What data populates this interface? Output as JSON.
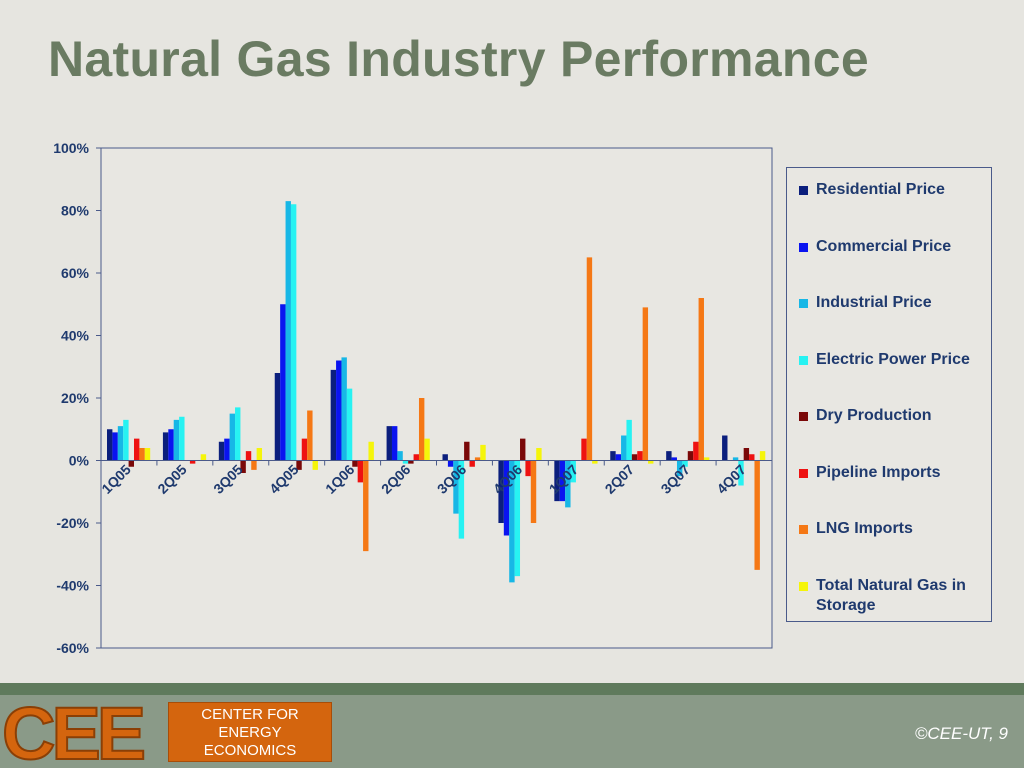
{
  "title": "Natural Gas Industry Performance",
  "footer": {
    "logo_text": "CEE",
    "logo_box_lines": [
      "CENTER FOR",
      "ENERGY",
      "ECONOMICS"
    ],
    "copyright": "©CEE-UT, 9"
  },
  "chart_data": {
    "type": "bar",
    "categories": [
      "1Q05",
      "2Q05",
      "3Q05",
      "4Q05",
      "1Q06",
      "2Q06",
      "3Q06",
      "4Q06",
      "1Q07",
      "2Q07",
      "3Q07",
      "4Q07"
    ],
    "ylim": [
      -60,
      100
    ],
    "yticks": [
      100,
      80,
      60,
      40,
      20,
      0,
      -20,
      -40,
      -60
    ],
    "ytick_labels": [
      "100%",
      "80%",
      "60%",
      "40%",
      "20%",
      "0%",
      "-20%",
      "-40%",
      "-60%"
    ],
    "grid": false,
    "legend_position": "right",
    "series": [
      {
        "name": "Residential Price",
        "color": "#0b1f7d",
        "values": [
          10,
          9,
          6,
          28,
          29,
          11,
          2,
          -20,
          -13,
          3,
          3,
          8
        ]
      },
      {
        "name": "Commercial Price",
        "color": "#0a14f0",
        "values": [
          9,
          10,
          7,
          50,
          32,
          11,
          -2,
          -24,
          -13,
          2,
          1,
          0
        ]
      },
      {
        "name": "Industrial Price",
        "color": "#17b7e6",
        "values": [
          11,
          13,
          15,
          83,
          33,
          3,
          -17,
          -39,
          -15,
          8,
          -5,
          1
        ]
      },
      {
        "name": "Electric Power Price",
        "color": "#27f2f2",
        "values": [
          13,
          14,
          17,
          82,
          23,
          -1,
          -25,
          -37,
          -7,
          13,
          -2,
          -8
        ]
      },
      {
        "name": "Dry Production",
        "color": "#7a0808",
        "values": [
          -2,
          0,
          -4,
          -3,
          -2,
          -1,
          6,
          7,
          0,
          2,
          3,
          4
        ]
      },
      {
        "name": "Pipeline Imports",
        "color": "#ee1111",
        "values": [
          7,
          -1,
          3,
          7,
          -7,
          2,
          -2,
          -5,
          7,
          3,
          6,
          2
        ]
      },
      {
        "name": "LNG Imports",
        "color": "#f57815",
        "values": [
          4,
          0,
          -3,
          16,
          -29,
          20,
          1,
          -20,
          65,
          49,
          52,
          -35
        ]
      },
      {
        "name": "Total Natural Gas in Storage",
        "color": "#f5f50a",
        "values": [
          4,
          2,
          4,
          -3,
          6,
          7,
          5,
          4,
          -1,
          -1,
          1,
          3
        ]
      }
    ]
  }
}
